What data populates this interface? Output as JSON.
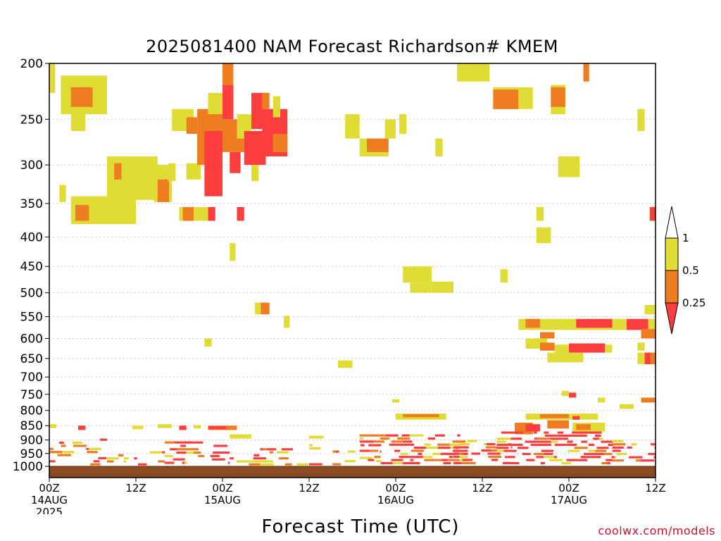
{
  "chart_data": {
    "type": "heatmap",
    "title": "2025081400 NAM Forecast Richardson# KMEM",
    "xlabel": "Forecast Time (UTC)",
    "credit": "coolwx.com/models",
    "y_axis": {
      "label": "",
      "scale": "log-pressure",
      "range_hPa": [
        1000,
        200
      ],
      "ticks": [
        "200",
        "250",
        "300",
        "350",
        "400",
        "450",
        "500",
        "550",
        "600",
        "650",
        "700",
        "750",
        "800",
        "850",
        "900",
        "950",
        "1000"
      ]
    },
    "x_axis": {
      "range_hours": [
        0,
        84
      ],
      "ticks": [
        {
          "hour": 0,
          "line1": "00Z",
          "line2": "14AUG",
          "line3": "2025"
        },
        {
          "hour": 12,
          "line1": "12Z",
          "line2": "",
          "line3": ""
        },
        {
          "hour": 24,
          "line1": "00Z",
          "line2": "15AUG",
          "line3": ""
        },
        {
          "hour": 36,
          "line1": "12Z",
          "line2": "",
          "line3": ""
        },
        {
          "hour": 48,
          "line1": "00Z",
          "line2": "16AUG",
          "line3": ""
        },
        {
          "hour": 60,
          "line1": "12Z",
          "line2": "",
          "line3": ""
        },
        {
          "hour": 72,
          "line1": "00Z",
          "line2": "17AUG",
          "line3": ""
        },
        {
          "hour": 84,
          "line1": "12Z",
          "line2": "",
          "line3": ""
        }
      ]
    },
    "grid": "dotted horizontal at labeled pressure levels",
    "colors": {
      "lt_0_25": "#fc3e3e",
      "0_25_to_0_5": "#ee7d22",
      "0_5_to_1": "#e0dc36",
      "ground": "#8c4a20"
    },
    "legend": {
      "placement": "right",
      "labels": [
        "1",
        "0.5",
        "0.25"
      ]
    },
    "regions": [
      {
        "h": [
          0,
          0.8
        ],
        "p": [
          200,
          225
        ],
        "c": 3
      },
      {
        "h": [
          1.6,
          8
        ],
        "p": [
          210,
          245
        ],
        "c": 3
      },
      {
        "h": [
          3,
          6
        ],
        "p": [
          220,
          238
        ],
        "c": 2
      },
      {
        "h": [
          3,
          5
        ],
        "p": [
          243,
          262
        ],
        "c": 3
      },
      {
        "h": [
          8,
          15
        ],
        "p": [
          290,
          345
        ],
        "c": 3
      },
      {
        "h": [
          9,
          10
        ],
        "p": [
          298,
          318
        ],
        "c": 2
      },
      {
        "h": [
          3,
          12
        ],
        "p": [
          340,
          380
        ],
        "c": 3
      },
      {
        "h": [
          3.6,
          5.5
        ],
        "p": [
          352,
          375
        ],
        "c": 2
      },
      {
        "h": [
          1.4,
          2.3
        ],
        "p": [
          325,
          348
        ],
        "c": 3
      },
      {
        "h": [
          14.5,
          17
        ],
        "p": [
          300,
          348
        ],
        "c": 3
      },
      {
        "h": [
          15,
          16.6
        ],
        "p": [
          318,
          348
        ],
        "c": 2
      },
      {
        "h": [
          16.5,
          17.5
        ],
        "p": [
          298,
          320
        ],
        "c": 3
      },
      {
        "h": [
          17,
          20
        ],
        "p": [
          240,
          262
        ],
        "c": 3
      },
      {
        "h": [
          19,
          20.5
        ],
        "p": [
          248,
          265
        ],
        "c": 2
      },
      {
        "h": [
          18,
          22
        ],
        "p": [
          355,
          375
        ],
        "c": 3
      },
      {
        "h": [
          18.5,
          20
        ],
        "p": [
          355,
          375
        ],
        "c": 2
      },
      {
        "h": [
          19,
          21
        ],
        "p": [
          298,
          318
        ],
        "c": 3
      },
      {
        "h": [
          20.5,
          24
        ],
        "p": [
          240,
          300
        ],
        "c": 2
      },
      {
        "h": [
          21.5,
          24
        ],
        "p": [
          262,
          340
        ],
        "c": 1
      },
      {
        "h": [
          22,
          23
        ],
        "p": [
          355,
          375
        ],
        "c": 1
      },
      {
        "h": [
          22,
          24
        ],
        "p": [
          225,
          245
        ],
        "c": 3
      },
      {
        "h": [
          24,
          25.5
        ],
        "p": [
          200,
          218
        ],
        "c": 2
      },
      {
        "h": [
          24,
          25.5
        ],
        "p": [
          218,
          250
        ],
        "c": 1
      },
      {
        "h": [
          24,
          27
        ],
        "p": [
          250,
          285
        ],
        "c": 2
      },
      {
        "h": [
          25,
          26.5
        ],
        "p": [
          285,
          310
        ],
        "c": 1
      },
      {
        "h": [
          26,
          28
        ],
        "p": [
          245,
          270
        ],
        "c": 3
      },
      {
        "h": [
          26,
          27
        ],
        "p": [
          355,
          375
        ],
        "c": 1
      },
      {
        "h": [
          27,
          30
        ],
        "p": [
          262,
          300
        ],
        "c": 1
      },
      {
        "h": [
          28,
          30
        ],
        "p": [
          225,
          260
        ],
        "c": 1
      },
      {
        "h": [
          28,
          29
        ],
        "p": [
          300,
          320
        ],
        "c": 3
      },
      {
        "h": [
          29.5,
          33
        ],
        "p": [
          240,
          265
        ],
        "c": 1
      },
      {
        "h": [
          30,
          33
        ],
        "p": [
          265,
          290
        ],
        "c": 1
      },
      {
        "h": [
          31,
          33
        ],
        "p": [
          265,
          285
        ],
        "c": 2
      },
      {
        "h": [
          29.5,
          30.5
        ],
        "p": [
          225,
          240
        ],
        "c": 2
      },
      {
        "h": [
          31,
          32
        ],
        "p": [
          228,
          248
        ],
        "c": 3
      },
      {
        "h": [
          25,
          25.8
        ],
        "p": [
          410,
          440
        ],
        "c": 3
      },
      {
        "h": [
          28.5,
          29.3
        ],
        "p": [
          520,
          545
        ],
        "c": 3
      },
      {
        "h": [
          29.3,
          30.5
        ],
        "p": [
          520,
          545
        ],
        "c": 2
      },
      {
        "h": [
          32.5,
          33.3
        ],
        "p": [
          548,
          575
        ],
        "c": 3
      },
      {
        "h": [
          21.5,
          22.5
        ],
        "p": [
          600,
          620
        ],
        "c": 3
      },
      {
        "h": [
          41,
          43
        ],
        "p": [
          245,
          270
        ],
        "c": 3
      },
      {
        "h": [
          43,
          47
        ],
        "p": [
          270,
          290
        ],
        "c": 3
      },
      {
        "h": [
          44,
          47
        ],
        "p": [
          270,
          285
        ],
        "c": 2
      },
      {
        "h": [
          46.5,
          48
        ],
        "p": [
          250,
          270
        ],
        "c": 3
      },
      {
        "h": [
          48.5,
          49.5
        ],
        "p": [
          245,
          265
        ],
        "c": 3
      },
      {
        "h": [
          53.5,
          54.5
        ],
        "p": [
          270,
          290
        ],
        "c": 3
      },
      {
        "h": [
          56.5,
          61
        ],
        "p": [
          200,
          215
        ],
        "c": 3
      },
      {
        "h": [
          49,
          53
        ],
        "p": [
          450,
          480
        ],
        "c": 3
      },
      {
        "h": [
          50,
          53
        ],
        "p": [
          480,
          500
        ],
        "c": 3
      },
      {
        "h": [
          53,
          56
        ],
        "p": [
          478,
          500
        ],
        "c": 3
      },
      {
        "h": [
          40,
          42
        ],
        "p": [
          655,
          675
        ],
        "c": 3
      },
      {
        "h": [
          62.5,
          63.5
        ],
        "p": [
          455,
          480
        ],
        "c": 3
      },
      {
        "h": [
          61.5,
          67
        ],
        "p": [
          220,
          240
        ],
        "c": 3
      },
      {
        "h": [
          61.5,
          65
        ],
        "p": [
          222,
          240
        ],
        "c": 2
      },
      {
        "h": [
          69.5,
          71.5
        ],
        "p": [
          218,
          245
        ],
        "c": 3
      },
      {
        "h": [
          69.5,
          71.5
        ],
        "p": [
          220,
          238
        ],
        "c": 2
      },
      {
        "h": [
          74,
          74.8
        ],
        "p": [
          200,
          215
        ],
        "c": 2
      },
      {
        "h": [
          70.5,
          73.5
        ],
        "p": [
          290,
          315
        ],
        "c": 3
      },
      {
        "h": [
          81.5,
          82.5
        ],
        "p": [
          240,
          262
        ],
        "c": 3
      },
      {
        "h": [
          67.5,
          68.5
        ],
        "p": [
          355,
          375
        ],
        "c": 3
      },
      {
        "h": [
          67.5,
          69.5
        ],
        "p": [
          385,
          410
        ],
        "c": 3
      },
      {
        "h": [
          83.2,
          84
        ],
        "p": [
          355,
          375
        ],
        "c": 3
      },
      {
        "h": [
          83.2,
          84
        ],
        "p": [
          355,
          375
        ],
        "c": 1
      },
      {
        "h": [
          65,
          80
        ],
        "p": [
          555,
          580
        ],
        "c": 3
      },
      {
        "h": [
          66,
          68
        ],
        "p": [
          555,
          575
        ],
        "c": 2
      },
      {
        "h": [
          73,
          78
        ],
        "p": [
          555,
          575
        ],
        "c": 1
      },
      {
        "h": [
          68,
          70
        ],
        "p": [
          585,
          600
        ],
        "c": 2
      },
      {
        "h": [
          66,
          69
        ],
        "p": [
          600,
          625
        ],
        "c": 3
      },
      {
        "h": [
          68,
          70
        ],
        "p": [
          610,
          630
        ],
        "c": 2
      },
      {
        "h": [
          70,
          72
        ],
        "p": [
          615,
          635
        ],
        "c": 3
      },
      {
        "h": [
          72,
          77
        ],
        "p": [
          612,
          635
        ],
        "c": 1
      },
      {
        "h": [
          77,
          78
        ],
        "p": [
          615,
          635
        ],
        "c": 3
      },
      {
        "h": [
          69,
          74
        ],
        "p": [
          635,
          660
        ],
        "c": 3
      },
      {
        "h": [
          80,
          83
        ],
        "p": [
          555,
          580
        ],
        "c": 1
      },
      {
        "h": [
          83,
          84
        ],
        "p": [
          555,
          580
        ],
        "c": 3
      },
      {
        "h": [
          82,
          84
        ],
        "p": [
          578,
          600
        ],
        "c": 2
      },
      {
        "h": [
          82.5,
          84
        ],
        "p": [
          525,
          545
        ],
        "c": 3
      },
      {
        "h": [
          81.5,
          82.5
        ],
        "p": [
          610,
          630
        ],
        "c": 3
      },
      {
        "h": [
          81.5,
          84
        ],
        "p": [
          635,
          665
        ],
        "c": 3
      },
      {
        "h": [
          82.5,
          83.3
        ],
        "p": [
          635,
          665
        ],
        "c": 1
      },
      {
        "h": [
          83.3,
          84
        ],
        "p": [
          635,
          665
        ],
        "c": 2
      },
      {
        "h": [
          47.5,
          48.5
        ],
        "p": [
          765,
          775
        ],
        "c": 3
      },
      {
        "h": [
          71,
          72
        ],
        "p": [
          740,
          755
        ],
        "c": 3
      },
      {
        "h": [
          72,
          73
        ],
        "p": [
          745,
          760
        ],
        "c": 1
      },
      {
        "h": [
          76,
          77
        ],
        "p": [
          760,
          775
        ],
        "c": 3
      },
      {
        "h": [
          79,
          81
        ],
        "p": [
          780,
          795
        ],
        "c": 3
      },
      {
        "h": [
          82,
          84
        ],
        "p": [
          760,
          775
        ],
        "c": 2
      },
      {
        "h": [
          48,
          55
        ],
        "p": [
          810,
          830
        ],
        "c": 3
      },
      {
        "h": [
          49,
          54
        ],
        "p": [
          812,
          822
        ],
        "c": 2
      },
      {
        "h": [
          66,
          76
        ],
        "p": [
          810,
          830
        ],
        "c": 3
      },
      {
        "h": [
          68,
          72
        ],
        "p": [
          812,
          825
        ],
        "c": 2
      },
      {
        "h": [
          72.5,
          73.5
        ],
        "p": [
          818,
          830
        ],
        "c": 1
      },
      {
        "h": [
          64.5,
          67
        ],
        "p": [
          840,
          880
        ],
        "c": 2
      },
      {
        "h": [
          66,
          68
        ],
        "p": [
          845,
          870
        ],
        "c": 1
      },
      {
        "h": [
          69,
          72
        ],
        "p": [
          832,
          860
        ],
        "c": 2
      },
      {
        "h": [
          72.5,
          77
        ],
        "p": [
          840,
          870
        ],
        "c": 3
      },
      {
        "h": [
          73,
          75
        ],
        "p": [
          845,
          865
        ],
        "c": 2
      },
      {
        "h": [
          22,
          26
        ],
        "p": [
          850,
          865
        ],
        "c": 2
      },
      {
        "h": [
          22,
          24.5
        ],
        "p": [
          852,
          862
        ],
        "c": 1
      },
      {
        "h": [
          11.5,
          13
        ],
        "p": [
          850,
          862
        ],
        "c": 3
      },
      {
        "h": [
          15,
          17
        ],
        "p": [
          845,
          858
        ],
        "c": 3
      },
      {
        "h": [
          18,
          19
        ],
        "p": [
          850,
          865
        ],
        "c": 1
      },
      {
        "h": [
          20,
          21
        ],
        "p": [
          848,
          860
        ],
        "c": 3
      },
      {
        "h": [
          4,
          5
        ],
        "p": [
          850,
          865
        ],
        "c": 1
      },
      {
        "h": [
          0,
          1
        ],
        "p": [
          845,
          858
        ],
        "c": 3
      },
      {
        "h": [
          36,
          38
        ],
        "p": [
          885,
          895
        ],
        "c": 3
      },
      {
        "h": [
          25,
          28
        ],
        "p": [
          880,
          895
        ],
        "c": 3
      }
    ],
    "lowlevel_bands": [
      {
        "h": [
          0,
          8
        ],
        "p": [
          895,
          1000
        ],
        "density": 0.22,
        "mix": [
          0.55,
          0.3,
          0.15
        ]
      },
      {
        "h": [
          8,
          16
        ],
        "p": [
          930,
          1000
        ],
        "density": 0.18,
        "mix": [
          0.2,
          0.3,
          0.5
        ]
      },
      {
        "h": [
          16,
          25
        ],
        "p": [
          905,
          995
        ],
        "density": 0.3,
        "mix": [
          0.7,
          0.15,
          0.15
        ]
      },
      {
        "h": [
          25,
          36
        ],
        "p": [
          930,
          1000
        ],
        "density": 0.28,
        "mix": [
          0.35,
          0.25,
          0.4
        ]
      },
      {
        "h": [
          36,
          46
        ],
        "p": [
          915,
          1000
        ],
        "density": 0.38,
        "mix": [
          0.4,
          0.3,
          0.3
        ]
      },
      {
        "h": [
          43,
          58
        ],
        "p": [
          880,
          995
        ],
        "density": 0.45,
        "mix": [
          0.62,
          0.25,
          0.13
        ]
      },
      {
        "h": [
          56,
          64
        ],
        "p": [
          900,
          995
        ],
        "density": 0.38,
        "mix": [
          0.45,
          0.3,
          0.25
        ]
      },
      {
        "h": [
          62,
          78
        ],
        "p": [
          870,
          995
        ],
        "density": 0.48,
        "mix": [
          0.75,
          0.12,
          0.13
        ]
      },
      {
        "h": [
          78,
          84
        ],
        "p": [
          900,
          998
        ],
        "density": 0.35,
        "mix": [
          0.55,
          0.2,
          0.25
        ]
      }
    ]
  }
}
